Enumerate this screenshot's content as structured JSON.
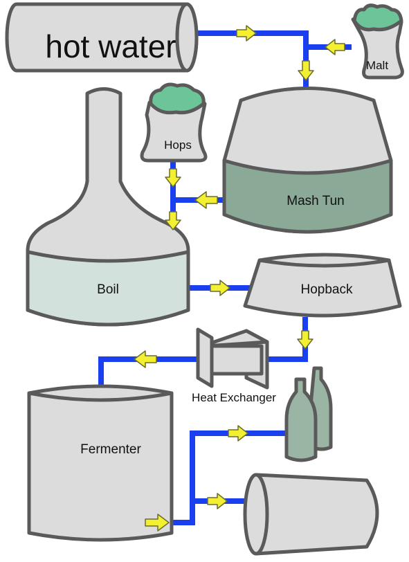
{
  "labels": {
    "hot_water": "hot water",
    "malt": "Malt",
    "hops": "Hops",
    "mash_tun": "Mash Tun",
    "boil": "Boil",
    "hopback": "Hopback",
    "heat_exchanger": "Heat Exchanger",
    "fermenter": "Fermenter"
  },
  "colors": {
    "vessel_fill": "#dcdcdc",
    "mash_tun_liquid": "#8aa997",
    "boil_liquid": "#d3e1dc",
    "grain_green": "#6cc499",
    "bottle_green": "#9bb5a5",
    "pipe_blue": "#1a3fef",
    "arrow_yellow": "#f2f030",
    "outline_gray": "#5a5a5a"
  }
}
